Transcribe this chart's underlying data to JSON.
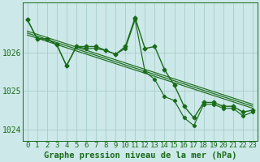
{
  "title": "Graphe pression niveau de la mer (hPa)",
  "background_color": "#cce8e8",
  "plot_bg_color": "#cce8e8",
  "line_color": "#1a6b1a",
  "grid_color": "#aacccc",
  "text_color": "#1a6b1a",
  "x_values": [
    0,
    1,
    2,
    3,
    4,
    5,
    6,
    7,
    8,
    9,
    10,
    11,
    12,
    13,
    14,
    15,
    16,
    17,
    18,
    19,
    20,
    21,
    22,
    23
  ],
  "y_main": [
    1026.85,
    1026.35,
    1026.35,
    1026.2,
    1025.65,
    1026.15,
    1026.15,
    1026.15,
    1026.05,
    1025.95,
    1026.15,
    1026.9,
    1026.1,
    1026.15,
    1025.55,
    1025.15,
    1024.6,
    1024.3,
    1024.7,
    1024.7,
    1024.6,
    1024.6,
    1024.45,
    1024.5
  ],
  "y_line2": [
    1026.85,
    1026.35,
    1026.35,
    1026.2,
    1025.65,
    1026.15,
    1026.1,
    1026.1,
    1026.05,
    1025.95,
    1026.1,
    1026.85,
    1025.5,
    1025.3,
    1024.85,
    1024.75,
    1024.3,
    1024.1,
    1024.65,
    1024.65,
    1024.55,
    1024.55,
    1024.35,
    1024.45
  ],
  "trend_x": [
    0,
    23
  ],
  "trend1_y": [
    1026.55,
    1024.65
  ],
  "trend2_y": [
    1026.5,
    1024.6
  ],
  "trend3_y": [
    1026.45,
    1024.55
  ],
  "ylim": [
    1023.7,
    1027.3
  ],
  "yticks": [
    1024,
    1025,
    1026
  ],
  "xlim": [
    -0.5,
    23.5
  ],
  "marker": "D",
  "marker_size": 2.5,
  "line_width": 1.0,
  "title_fontsize": 7.5,
  "tick_fontsize": 6.5
}
